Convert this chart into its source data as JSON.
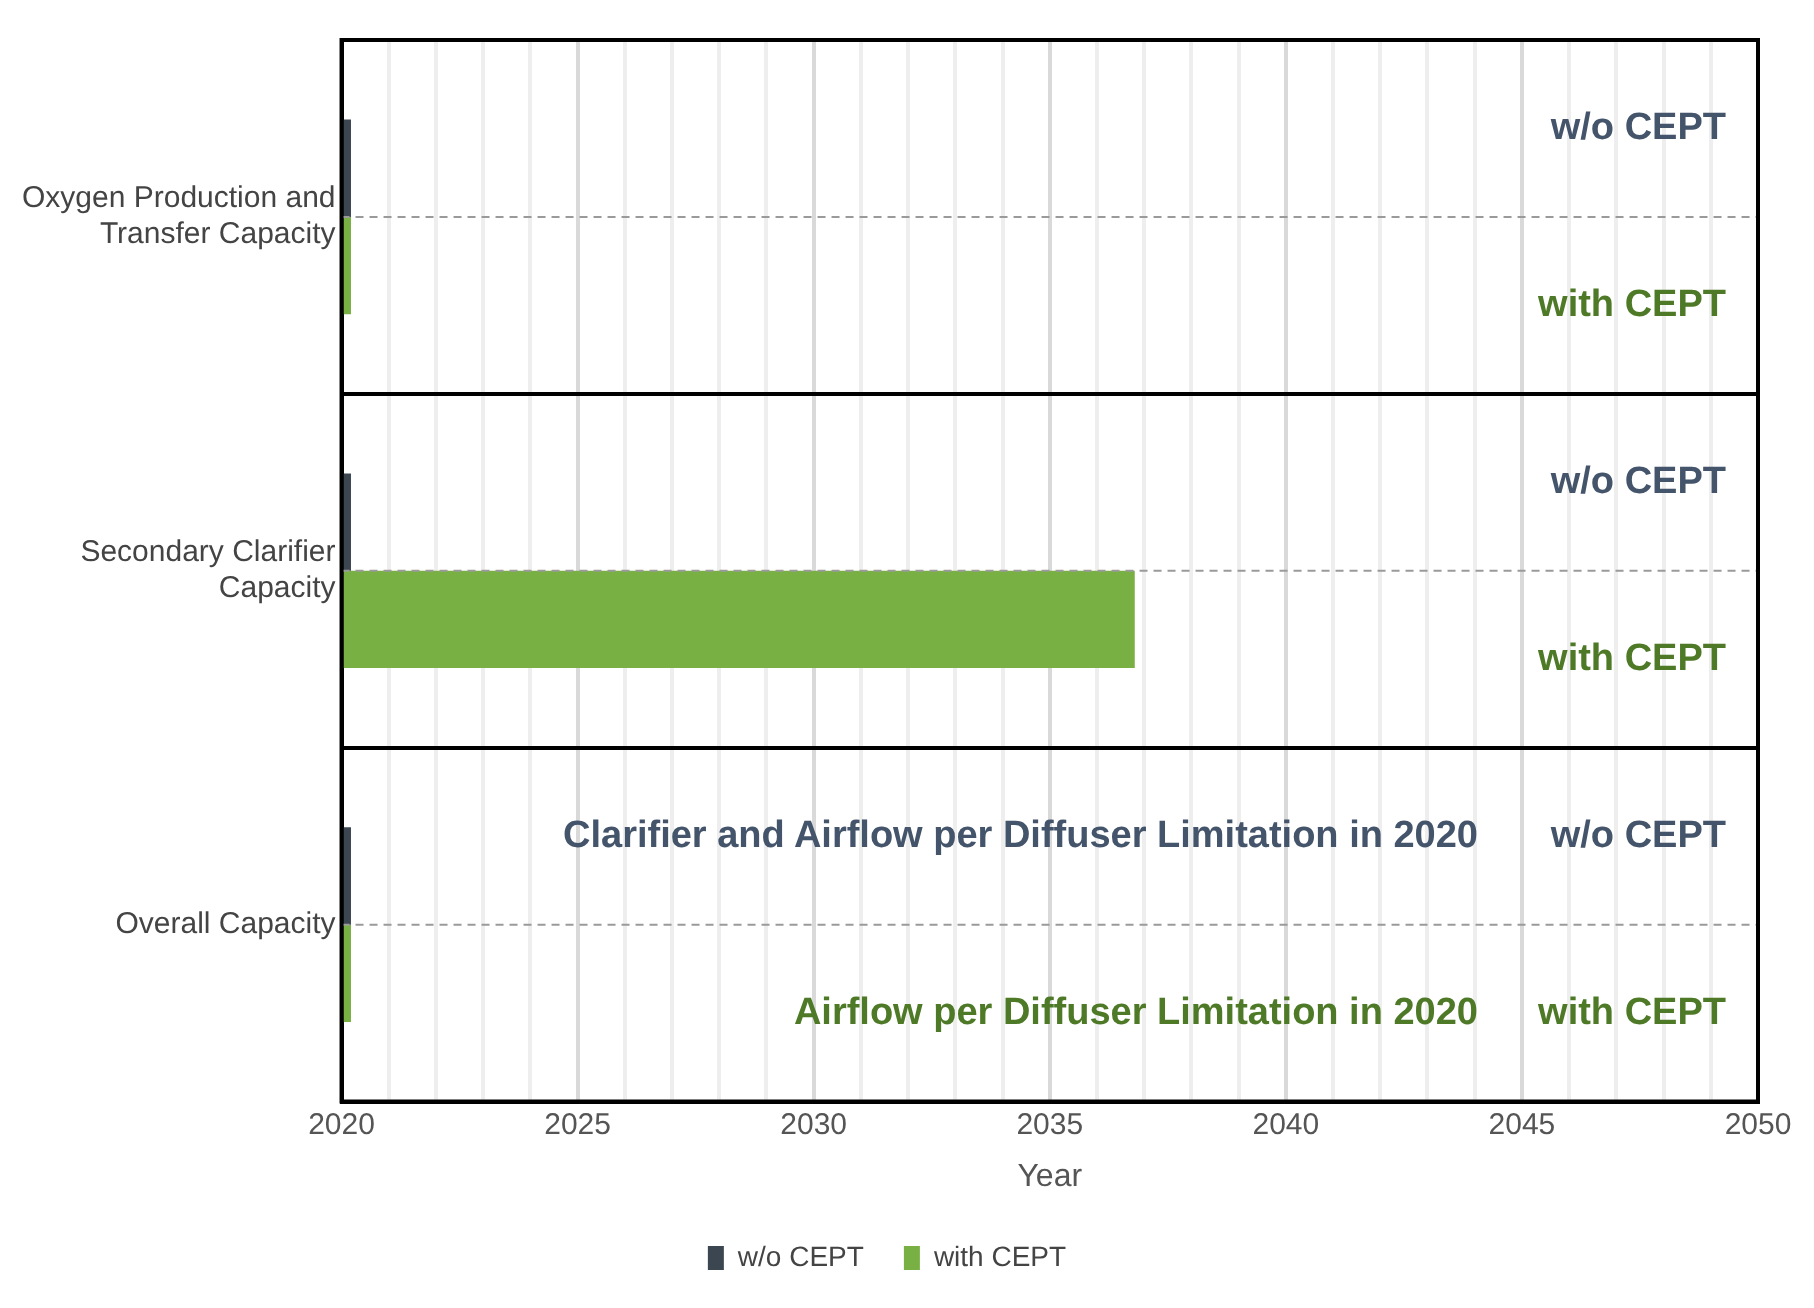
{
  "chart_data": {
    "type": "bar",
    "orientation": "horizontal",
    "xlabel": "Year",
    "categories": [
      "Oxygen Production and Transfer Capacity",
      "Secondary Clarifier Capacity",
      "Overall Capacity"
    ],
    "series": [
      {
        "name": "w/o CEPT",
        "color": "#3b4650",
        "values": [
          2020.2,
          2020.2,
          2020.2
        ]
      },
      {
        "name": "with CEPT",
        "color": "#78b043",
        "values": [
          2020.2,
          2036.8,
          2020.2
        ]
      }
    ],
    "xlim": [
      2020,
      2050
    ],
    "xticks": [
      2020,
      {
        "value": 2021,
        "label": null
      },
      {
        "value": 2022,
        "label": null
      },
      {
        "value": 2023,
        "label": null
      },
      {
        "value": 2024,
        "label": null
      },
      2025,
      {
        "value": 2026,
        "label": null
      },
      {
        "value": 2027,
        "label": null
      },
      {
        "value": 2028,
        "label": null
      },
      {
        "value": 2029,
        "label": null
      },
      2030,
      {
        "value": 2031,
        "label": null
      },
      {
        "value": 2032,
        "label": null
      },
      {
        "value": 2033,
        "label": null
      },
      {
        "value": 2034,
        "label": null
      },
      2035,
      {
        "value": 2036,
        "label": null
      },
      {
        "value": 2037,
        "label": null
      },
      {
        "value": 2038,
        "label": null
      },
      {
        "value": 2039,
        "label": null
      },
      2040,
      {
        "value": 2041,
        "label": null
      },
      {
        "value": 2042,
        "label": null
      },
      {
        "value": 2043,
        "label": null
      },
      {
        "value": 2044,
        "label": null
      },
      2045,
      {
        "value": 2046,
        "label": null
      },
      {
        "value": 2047,
        "label": null
      },
      {
        "value": 2048,
        "label": null
      },
      {
        "value": 2049,
        "label": null
      },
      2050
    ],
    "grid": true,
    "legend": "bottom",
    "annotations": [
      "w/o CEPT",
      "with CEPT",
      "w/o CEPT",
      "with CEPT",
      "w/o CEPT",
      "with CEPT",
      "Clarifier and Airflow per Diffuser Limitation in 2020",
      "Airflow per Diffuser Limitation in 2020"
    ]
  }
}
